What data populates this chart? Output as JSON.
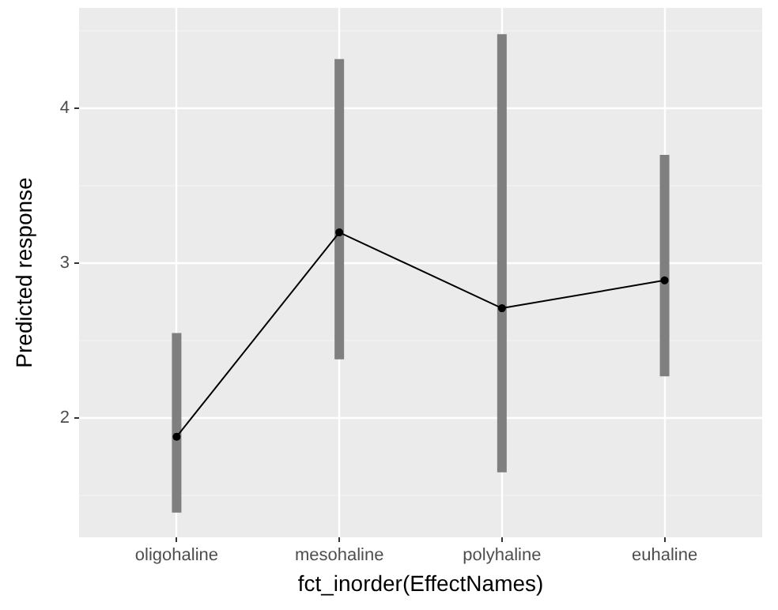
{
  "chart_data": {
    "type": "line",
    "xlabel": "fct_inorder(EffectNames)",
    "ylabel": "Predicted response",
    "categories": [
      "oligohaline",
      "mesohaline",
      "polyhaline",
      "euhaline"
    ],
    "series": [
      {
        "color": "#000000",
        "values": [
          1.88,
          3.2,
          2.71,
          2.89
        ],
        "errors": [
          [
            1.39,
            2.55
          ],
          [
            2.38,
            4.32
          ],
          [
            1.65,
            4.48
          ],
          [
            2.27,
            3.7
          ]
        ]
      }
    ],
    "ylim": [
      1.23,
      4.65
    ],
    "yticks": [
      2,
      3,
      4
    ],
    "grid": true,
    "marker": "circle",
    "line_style": "solid"
  }
}
